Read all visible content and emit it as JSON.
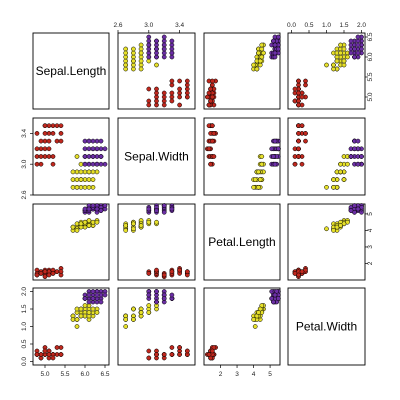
{
  "chart_data": {
    "type": "scatter",
    "title": "",
    "variables": [
      "Sepal.Length",
      "Sepal.Width",
      "Petal.Length",
      "Petal.Width"
    ],
    "ranges": {
      "Sepal.Length": [
        4.7,
        6.6
      ],
      "Sepal.Width": [
        2.6,
        3.6
      ],
      "Petal.Length": [
        1.0,
        5.6
      ],
      "Petal.Width": [
        -0.1,
        2.1
      ]
    },
    "ticks": {
      "Sepal.Length": [
        5.0,
        5.5,
        6.0,
        6.5
      ],
      "Sepal.Width": [
        2.6,
        3.0,
        3.4
      ],
      "Petal.Length": [
        2,
        3,
        4,
        5
      ],
      "Petal.Width": [
        0.0,
        0.5,
        1.0,
        1.5,
        2.0
      ]
    },
    "tick_labels": {
      "Sepal.Length": [
        "5.0",
        "5.5",
        "6.0",
        "6.5"
      ],
      "Sepal.Width": [
        "2.6",
        "3.0",
        "3.4"
      ],
      "Petal.Length": [
        "2",
        "3",
        "4",
        "5"
      ],
      "Petal.Width": [
        "0.0",
        "0.5",
        "1.0",
        "1.5",
        "2.0"
      ]
    },
    "grid": false,
    "legend": "none",
    "series": [
      {
        "color": "#c0281e",
        "points": [
          [
            4.8,
            3.1,
            1.3,
            0.2
          ],
          [
            4.9,
            3.2,
            1.4,
            0.1
          ],
          [
            5.0,
            3.5,
            1.4,
            0.2
          ],
          [
            5.1,
            3.4,
            1.5,
            0.3
          ],
          [
            4.9,
            3.0,
            1.5,
            0.1
          ],
          [
            5.2,
            3.5,
            1.5,
            0.2
          ],
          [
            5.0,
            3.3,
            1.3,
            0.2
          ],
          [
            5.4,
            3.4,
            1.7,
            0.4
          ],
          [
            5.1,
            3.3,
            1.6,
            0.2
          ],
          [
            4.8,
            3.4,
            1.6,
            0.2
          ],
          [
            5.3,
            3.5,
            1.5,
            0.2
          ],
          [
            5.0,
            3.1,
            1.4,
            0.3
          ],
          [
            5.2,
            3.4,
            1.4,
            0.2
          ],
          [
            4.9,
            3.1,
            1.5,
            0.2
          ],
          [
            5.1,
            3.5,
            1.4,
            0.3
          ],
          [
            5.4,
            3.5,
            1.3,
            0.2
          ],
          [
            5.0,
            3.2,
            1.2,
            0.2
          ],
          [
            5.1,
            3.1,
            1.5,
            0.1
          ],
          [
            4.8,
            3.0,
            1.4,
            0.3
          ],
          [
            5.3,
            3.3,
            1.5,
            0.4
          ],
          [
            5.2,
            3.1,
            1.6,
            0.2
          ],
          [
            5.0,
            3.4,
            1.6,
            0.4
          ],
          [
            4.9,
            3.3,
            1.4,
            0.2
          ],
          [
            5.1,
            3.2,
            1.3,
            0.2
          ],
          [
            5.4,
            3.3,
            1.5,
            0.2
          ],
          [
            5.2,
            3.0,
            1.4,
            0.1
          ],
          [
            5.0,
            3.5,
            1.5,
            0.3
          ],
          [
            4.8,
            3.2,
            1.3,
            0.2
          ]
        ]
      },
      {
        "color": "#e6e02a",
        "points": [
          [
            5.8,
            2.7,
            4.1,
            1.0
          ],
          [
            6.0,
            2.8,
            4.2,
            1.3
          ],
          [
            5.9,
            3.0,
            4.4,
            1.4
          ],
          [
            6.1,
            2.9,
            4.5,
            1.5
          ],
          [
            5.7,
            2.8,
            4.0,
            1.3
          ],
          [
            6.2,
            2.7,
            4.3,
            1.3
          ],
          [
            5.8,
            2.9,
            4.2,
            1.4
          ],
          [
            6.0,
            3.0,
            4.5,
            1.5
          ],
          [
            6.1,
            2.8,
            4.4,
            1.2
          ],
          [
            5.9,
            2.7,
            4.3,
            1.3
          ],
          [
            5.7,
            2.9,
            4.2,
            1.3
          ],
          [
            6.3,
            2.9,
            4.6,
            1.5
          ],
          [
            5.8,
            2.8,
            4.1,
            1.2
          ],
          [
            6.0,
            2.9,
            4.4,
            1.4
          ],
          [
            6.2,
            2.9,
            4.3,
            1.4
          ],
          [
            5.9,
            2.8,
            4.5,
            1.5
          ],
          [
            6.1,
            3.0,
            4.6,
            1.6
          ],
          [
            5.8,
            3.1,
            4.4,
            1.5
          ],
          [
            6.0,
            2.7,
            4.4,
            1.3
          ],
          [
            5.7,
            2.7,
            4.2,
            1.2
          ],
          [
            6.2,
            2.8,
            4.5,
            1.5
          ],
          [
            6.1,
            2.7,
            4.3,
            1.3
          ],
          [
            5.9,
            2.9,
            4.2,
            1.3
          ],
          [
            6.3,
            3.0,
            4.5,
            1.4
          ],
          [
            5.8,
            2.7,
            4.0,
            1.2
          ],
          [
            6.0,
            3.1,
            4.5,
            1.6
          ],
          [
            5.9,
            2.8,
            4.4,
            1.5
          ],
          [
            6.1,
            2.9,
            4.3,
            1.4
          ]
        ]
      },
      {
        "color": "#6c2fa6",
        "points": [
          [
            6.0,
            3.1,
            5.1,
            1.8
          ],
          [
            6.2,
            3.2,
            5.3,
            1.9
          ],
          [
            6.3,
            3.0,
            5.2,
            2.0
          ],
          [
            6.1,
            3.3,
            5.4,
            1.8
          ],
          [
            6.4,
            3.2,
            5.5,
            2.0
          ],
          [
            6.2,
            3.1,
            5.3,
            1.7
          ],
          [
            6.0,
            3.2,
            5.2,
            1.9
          ],
          [
            6.3,
            3.3,
            5.5,
            1.8
          ],
          [
            6.4,
            3.1,
            5.3,
            1.9
          ],
          [
            6.1,
            3.0,
            5.1,
            2.0
          ],
          [
            6.2,
            3.3,
            5.4,
            1.8
          ],
          [
            6.3,
            3.2,
            5.4,
            1.7
          ],
          [
            6.5,
            3.0,
            5.3,
            2.0
          ],
          [
            6.0,
            3.0,
            5.2,
            1.8
          ],
          [
            6.1,
            3.2,
            5.5,
            1.9
          ],
          [
            6.4,
            3.3,
            5.2,
            1.8
          ],
          [
            6.2,
            3.0,
            5.3,
            1.9
          ],
          [
            6.3,
            3.1,
            5.5,
            2.0
          ],
          [
            6.1,
            3.1,
            5.2,
            1.7
          ],
          [
            6.4,
            3.0,
            5.4,
            1.9
          ],
          [
            6.0,
            3.3,
            5.3,
            1.8
          ],
          [
            6.3,
            3.2,
            5.1,
            1.8
          ],
          [
            6.2,
            3.1,
            5.4,
            2.0
          ],
          [
            6.5,
            3.2,
            5.5,
            1.9
          ],
          [
            6.1,
            3.3,
            5.3,
            1.9
          ],
          [
            6.2,
            3.2,
            5.5,
            1.8
          ],
          [
            6.4,
            3.1,
            5.2,
            1.7
          ],
          [
            6.3,
            3.0,
            5.3,
            1.9
          ]
        ]
      }
    ]
  }
}
